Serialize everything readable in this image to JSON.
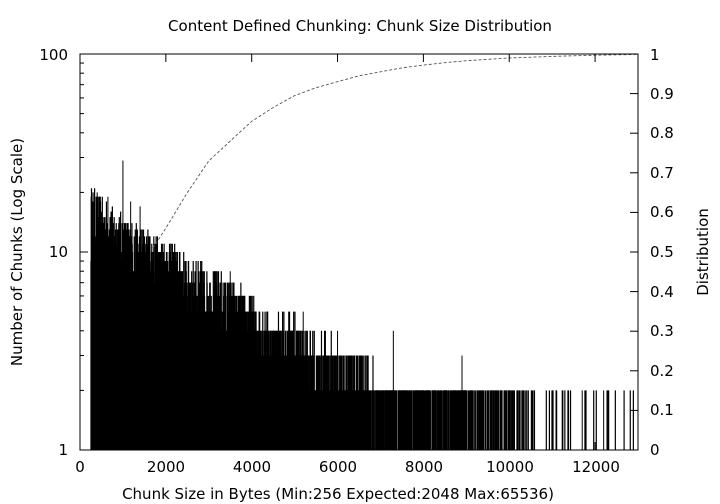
{
  "chart_data": {
    "type": "bar",
    "title": "Content Defined Chunking: Chunk Size Distribution",
    "xlabel": "Chunk Size in Bytes (Min:256 Expected:2048 Max:65536)",
    "ylabel": "Number of Chunks (Log Scale)",
    "y2label": "Distribution",
    "xlim": [
      0,
      13000
    ],
    "ylim": [
      1,
      100
    ],
    "y_scale": "log",
    "y2lim": [
      0,
      1
    ],
    "grid": false,
    "legend": "none",
    "x_ticks": [
      "0",
      "2000",
      "4000",
      "6000",
      "8000",
      "10000",
      "12000"
    ],
    "y_ticks": [
      "1",
      "10",
      "100"
    ],
    "y2_ticks": [
      "0",
      "0.1",
      "0.2",
      "0.3",
      "0.4",
      "0.5",
      "0.6",
      "0.7",
      "0.8",
      "0.9",
      "1"
    ],
    "series": [
      {
        "style": "histogram-spikes",
        "color": "#000000",
        "envelope_x": [
          256,
          500,
          800,
          1000,
          1500,
          2000,
          2500,
          3000,
          3500,
          4000,
          4500,
          5000,
          5500,
          6000,
          7000,
          8000,
          9000,
          10000,
          11000,
          12000,
          13000
        ],
        "envelope_y": [
          18,
          16,
          14,
          13,
          11,
          10,
          8,
          7,
          6,
          5,
          4,
          4,
          3,
          3,
          2,
          2,
          2,
          2,
          1,
          1,
          1
        ],
        "peak_x": [
          400,
          650,
          1000,
          1180,
          1400,
          3500,
          5200,
          6000,
          7300,
          8900,
          10200,
          11700,
          12200
        ],
        "peak_y": [
          20,
          19,
          29,
          18,
          17,
          8,
          5,
          4,
          4,
          3,
          2,
          2,
          2
        ]
      },
      {
        "style": "dashed-cdf",
        "axis": "y2",
        "color": "#555555",
        "x": [
          1700,
          2000,
          2500,
          3000,
          3500,
          4000,
          4500,
          5000,
          5500,
          6000,
          6500,
          7000,
          7500,
          8000,
          8500,
          9000,
          10000,
          11000,
          12000,
          13000
        ],
        "y": [
          0.51,
          0.56,
          0.65,
          0.73,
          0.78,
          0.83,
          0.865,
          0.895,
          0.915,
          0.93,
          0.945,
          0.955,
          0.965,
          0.972,
          0.978,
          0.983,
          0.99,
          0.994,
          0.997,
          0.999
        ]
      }
    ]
  }
}
